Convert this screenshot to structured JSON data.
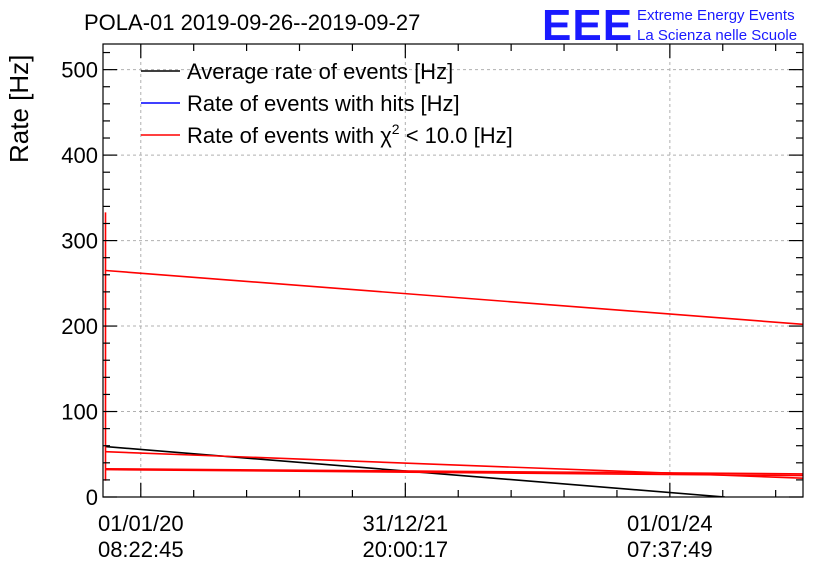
{
  "chart_data": {
    "type": "line",
    "title": "POLA-01 2019-09-26--2019-09-27",
    "xlabel": "",
    "ylabel": "Rate [Hz]",
    "ylim": [
      0,
      530
    ],
    "yticks": [
      0,
      100,
      200,
      300,
      400,
      500
    ],
    "grid": true,
    "legend_position": "top-left",
    "x_range": [
      "2019-09-19 00:00",
      "2025-01-03 00:00"
    ],
    "xticks": [
      {
        "date": "01/01/20",
        "time": "08:22:45",
        "t": "2020-01-01T08:22:45"
      },
      {
        "date": "31/12/21",
        "time": "20:00:17",
        "t": "2021-12-31T20:00:17"
      },
      {
        "date": "01/01/24",
        "time": "07:37:49",
        "t": "2024-01-01T07:37:49"
      }
    ],
    "series": [
      {
        "name": "Average rate of events [Hz]",
        "color": "#000000",
        "points": [
          [
            "2019-09-26",
            59
          ],
          [
            "2024-06-01",
            0
          ]
        ]
      },
      {
        "name": "Rate of events with hits [Hz]",
        "color": "#0000ff",
        "points": []
      },
      {
        "name": "Rate of events with χ² < 10.0 [Hz]",
        "color": "#ff0000",
        "segments": [
          [
            [
              "2019-09-26",
              333
            ],
            [
              "2019-09-26",
              19
            ]
          ],
          [
            [
              "2019-09-26",
              265
            ],
            [
              "2025-01-03",
              202
            ]
          ],
          [
            [
              "2019-09-26",
              53
            ],
            [
              "2025-01-03",
              22
            ]
          ],
          [
            [
              "2019-09-26",
              33
            ],
            [
              "2025-01-03",
              27
            ]
          ],
          [
            [
              "2019-09-26",
              32
            ],
            [
              "2025-01-03",
              25
            ]
          ]
        ]
      }
    ]
  },
  "logo": {
    "letters": "EEE",
    "line1": "Extreme Energy Events",
    "line2": "La Scienza nelle Scuole"
  },
  "legend": {
    "entry_0": {
      "label": "Average rate of events [Hz]",
      "color": "#000000"
    },
    "entry_1": {
      "label": "Rate of events with hits [Hz]",
      "color": "#0000ff"
    },
    "entry_2": {
      "label_pre": "Rate of events with ",
      "chi": "χ",
      "sup": "2",
      "label_post": " < 10.0 [Hz]",
      "color": "#ff0000"
    }
  }
}
